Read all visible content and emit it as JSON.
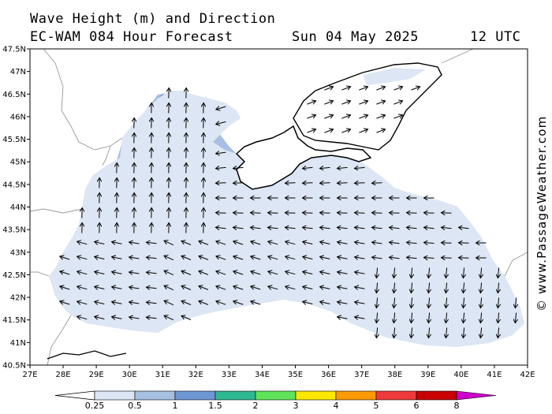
{
  "header": {
    "title_line1": "Wave Height (m) and Direction",
    "title_line2": "EC-WAM 084 Hour Forecast",
    "date": "Sun 04 May 2025",
    "time": "12 UTC"
  },
  "credit": "© www.PassageWeather.com",
  "map": {
    "lon_ticks": [
      "27E",
      "28E",
      "29E",
      "30E",
      "31E",
      "32E",
      "33E",
      "34E",
      "35E",
      "36E",
      "37E",
      "38E",
      "39E",
      "40E",
      "41E",
      "42E"
    ],
    "lat_ticks": [
      "40.5N",
      "41N",
      "41.5N",
      "42N",
      "42.5N",
      "43N",
      "43.5N",
      "44N",
      "44.5N",
      "45N",
      "45.5N",
      "46N",
      "46.5N",
      "47N",
      "47.5N"
    ],
    "colors": {
      "land": "#ffffff",
      "coast": "#000000",
      "border": "#999999",
      "calm_sea": "#ffffff",
      "band_0_25_0_5": "#dde6f4",
      "band_0_5_1": "#a7c0e2",
      "band_1_1_5": "#6e96d3"
    }
  },
  "legend": {
    "labels": [
      "0.25",
      "0.5",
      "1",
      "1.5",
      "2",
      "3",
      "4",
      "5",
      "6",
      "8"
    ],
    "colors": [
      "#dde6f4",
      "#a7c0e2",
      "#6e96d3",
      "#2eb892",
      "#5fe35a",
      "#ffe800",
      "#ff9a00",
      "#ee3a3a",
      "#c80000",
      "#cc00cc"
    ]
  }
}
